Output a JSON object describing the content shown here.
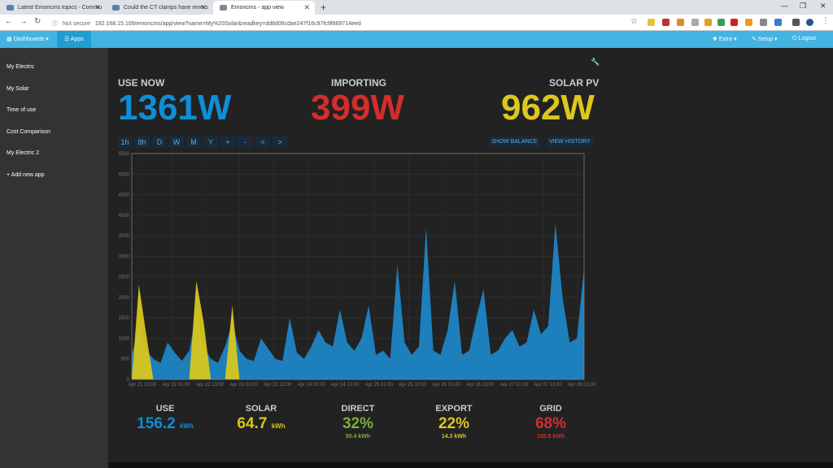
{
  "browser": {
    "tabs": [
      {
        "label": "Latest Emoncms topics - Commu"
      },
      {
        "label": "Could the CT clamps have revers"
      },
      {
        "label": "Emoncms - app view"
      }
    ],
    "new_tab": "+",
    "url_security": "Not secure",
    "url": "192.168.15.109/emoncms/app/view?name=My%20Solar&readkey=dd8d06cdae247f16c97fc9f869714eed"
  },
  "topbar": {
    "dashboards": "Dashboards ▾",
    "apps": "Apps",
    "extra": "Extra ▾",
    "setup": "Setup ▾",
    "logout": "Logout"
  },
  "sidebar": {
    "items": [
      {
        "label": "My Electric"
      },
      {
        "label": "My Solar"
      },
      {
        "label": "Time of use"
      },
      {
        "label": "Cost Comparison"
      },
      {
        "label": "My Electric 2"
      },
      {
        "label": "+ Add new app"
      }
    ]
  },
  "kpis": {
    "use_now": {
      "title": "USE NOW",
      "value": "1361W",
      "color": "#0d8fd6"
    },
    "importing": {
      "title": "IMPORTING",
      "value": "399W",
      "color": "#d42d2d"
    },
    "solar_pv": {
      "title": "SOLAR PV",
      "value": "962W",
      "color": "#dcc71e"
    }
  },
  "range_buttons": [
    "1h",
    "8h",
    "D",
    "W",
    "M",
    "Y",
    "+",
    "-",
    "<",
    ">"
  ],
  "history_buttons": {
    "balance": "SHOW BALANCE",
    "history": "VIEW HISTORY"
  },
  "chart_data": {
    "type": "area",
    "ylim": [
      0,
      5500
    ],
    "y_ticks": [
      "0",
      "500",
      "1000",
      "1500",
      "2000",
      "2500",
      "3000",
      "3500",
      "4000",
      "4500",
      "5000",
      "5500"
    ],
    "x_ticks": [
      "Apr 21 13:00",
      "Apr 22 01:00",
      "Apr 22 13:00",
      "Apr 23 01:00",
      "Apr 23 13:00",
      "Apr 24 01:00",
      "Apr 24 13:00",
      "Apr 25 01:00",
      "Apr 25 13:00",
      "Apr 26 01:00",
      "Apr 26 13:00",
      "Apr 27 01:00",
      "Apr 27 13:00",
      "Apr 28 01:00"
    ],
    "series": [
      {
        "color": "#1d8fd8",
        "values": [
          600,
          1300,
          700,
          500,
          400,
          900,
          650,
          450,
          700,
          1600,
          800,
          500,
          400,
          800,
          1400,
          700,
          500,
          450,
          1000,
          750,
          500,
          450,
          1500,
          650,
          500,
          800,
          1200,
          900,
          800,
          1700,
          900,
          700,
          1000,
          1800,
          600,
          700,
          500,
          2800,
          900,
          600,
          800,
          3700,
          700,
          600,
          1200,
          2400,
          600,
          700,
          1500,
          2200,
          600,
          700,
          1000,
          1200,
          800,
          900,
          1700,
          1100,
          1300,
          3800,
          2000,
          900,
          1000,
          2700
        ]
      },
      {
        "color": "#d8c71e",
        "values": [
          0,
          2300,
          1100,
          0,
          0,
          0,
          0,
          0,
          0,
          2400,
          1400,
          0,
          0,
          0,
          1800,
          0,
          0,
          0,
          0,
          0,
          0,
          0,
          0,
          0,
          0,
          0,
          0,
          0,
          0,
          0,
          0,
          0,
          0,
          0,
          0,
          0,
          0,
          0,
          0,
          0,
          0,
          0,
          0,
          0,
          0,
          0,
          0,
          0,
          0,
          0,
          0,
          0,
          0,
          0,
          0,
          0,
          0,
          0,
          0,
          0,
          0,
          0,
          0,
          0
        ]
      }
    ]
  },
  "stats": {
    "use": {
      "title": "USE",
      "value": "156.2",
      "unit": "kWh",
      "color": "#0d8fd6"
    },
    "solar": {
      "title": "SOLAR",
      "value": "64.7",
      "unit": "kWh",
      "color": "#dcc71e"
    },
    "direct": {
      "title": "DIRECT",
      "value": "32%",
      "sub": "50.4 kWh",
      "color": "#7fae3a"
    },
    "export": {
      "title": "EXPORT",
      "value": "22%",
      "sub": "14.3 kWh",
      "color": "#dcc71e"
    },
    "grid": {
      "title": "GRID",
      "value": "68%",
      "sub": "105.8 kWh",
      "color": "#d42d2d"
    }
  }
}
